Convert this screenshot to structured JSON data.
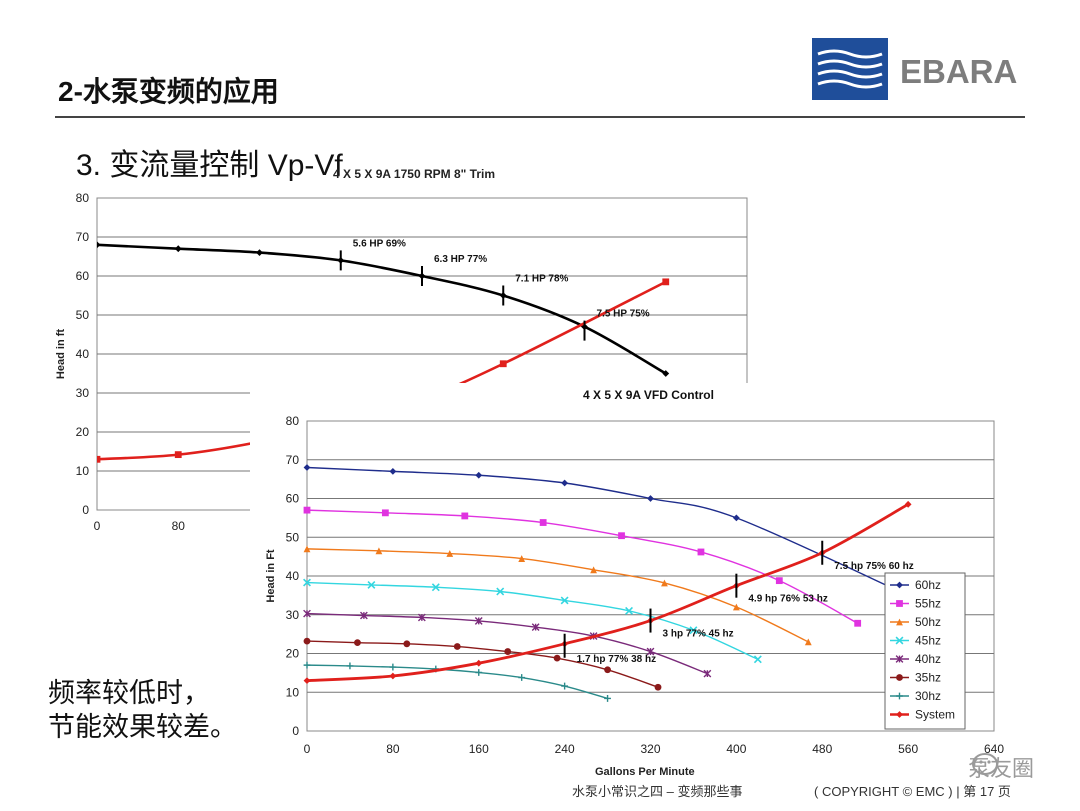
{
  "slide": {
    "title": "2-水泵变频的应用",
    "subtitle": "3.   变流量控制 Vp-Vf",
    "note_line1": "频率较低时，",
    "note_line2": "节能效果较差。",
    "footer_left": "水泵小常识之四 – 变频那些事",
    "footer_right": "( COPYRIGHT © EMC )  |  第 17 页",
    "logo_text": "EBARA",
    "watermark_text": "泵友圈",
    "colors": {
      "logo_blue": "#1f4e9a",
      "logo_gray": "#7d7d7d",
      "system": "#e0201c"
    }
  },
  "chart_data": [
    {
      "type": "line",
      "title": "4 X 5 X 9A  1750 RPM 8\" Trim",
      "ylabel": "Head in ft",
      "xlabel": "",
      "xlim": [
        0,
        640
      ],
      "ylim": [
        0,
        80
      ],
      "yticks": [
        "0",
        "10",
        "20",
        "30",
        "40",
        "50",
        "60",
        "70",
        "80"
      ],
      "xticks": [
        "0",
        "80"
      ],
      "grid": true,
      "series": [
        {
          "color": "#000000",
          "marker": "diamond",
          "x": [
            0,
            80,
            160,
            240,
            320,
            400,
            480,
            560
          ],
          "y": [
            68,
            67,
            66,
            64,
            60,
            55,
            47,
            35
          ]
        },
        {
          "color": "#e0201c",
          "marker": "square",
          "x": [
            0,
            80,
            160,
            240,
            320,
            400,
            560
          ],
          "y": [
            13,
            14.2,
            17.5,
            22.5,
            28.5,
            37.5,
            58.5
          ]
        }
      ],
      "annotations": [
        {
          "text": "5.6 HP  69%",
          "x": 240,
          "y": 64
        },
        {
          "text": "6.3 HP  77%",
          "x": 320,
          "y": 60
        },
        {
          "text": "7.1 HP  78%",
          "x": 400,
          "y": 55
        },
        {
          "text": "7.5 HP  75%",
          "x": 480,
          "y": 46
        }
      ]
    },
    {
      "type": "line",
      "title": "4 X 5 X 9A  VFD Control",
      "ylabel": "Head in Ft",
      "xlabel": "Gallons Per Minute",
      "xlim": [
        0,
        640
      ],
      "ylim": [
        0,
        80
      ],
      "xticks": [
        "0",
        "80",
        "160",
        "240",
        "320",
        "400",
        "480",
        "560",
        "640"
      ],
      "yticks": [
        "0",
        "10",
        "20",
        "30",
        "40",
        "50",
        "60",
        "70",
        "80"
      ],
      "grid": true,
      "legend": "right",
      "series": [
        {
          "name": "60hz",
          "color": "#1f2d8c",
          "marker": "diamond",
          "x": [
            0,
            80,
            160,
            240,
            320,
            400,
            560
          ],
          "y": [
            68,
            67,
            66,
            64,
            60,
            55,
            35
          ]
        },
        {
          "name": "55hz",
          "color": "#e033e0",
          "marker": "square",
          "x": [
            0,
            73,
            147,
            220,
            293,
            367,
            440,
            513
          ],
          "y": [
            57,
            56.3,
            55.5,
            53.8,
            50.4,
            46.2,
            38.8,
            27.8
          ]
        },
        {
          "name": "50hz",
          "color": "#f07a1c",
          "marker": "triangle",
          "x": [
            0,
            67,
            133,
            200,
            267,
            333,
            400,
            467
          ],
          "y": [
            47,
            46.5,
            45.8,
            44.5,
            41.6,
            38.2,
            32,
            23
          ]
        },
        {
          "name": "45hz",
          "color": "#33d6e0",
          "marker": "x",
          "x": [
            0,
            60,
            120,
            180,
            240,
            300,
            360,
            420
          ],
          "y": [
            38.3,
            37.7,
            37.1,
            36,
            33.7,
            31,
            26,
            18.5
          ]
        },
        {
          "name": "40hz",
          "color": "#7a2a7a",
          "marker": "star",
          "x": [
            0,
            53,
            107,
            160,
            213,
            267,
            320,
            373
          ],
          "y": [
            30.3,
            29.8,
            29.3,
            28.4,
            26.8,
            24.5,
            20.5,
            14.8
          ]
        },
        {
          "name": "35hz",
          "color": "#8b1a1a",
          "marker": "circle",
          "x": [
            0,
            47,
            93,
            140,
            187,
            233,
            280,
            327
          ],
          "y": [
            23.2,
            22.8,
            22.5,
            21.8,
            20.5,
            18.8,
            15.8,
            11.3
          ]
        },
        {
          "name": "30hz",
          "color": "#2a8a8a",
          "marker": "plus",
          "x": [
            0,
            40,
            80,
            120,
            160,
            200,
            240,
            280
          ],
          "y": [
            17,
            16.8,
            16.5,
            16,
            15.1,
            13.8,
            11.6,
            8.4
          ]
        },
        {
          "name": "System",
          "color": "#e0201c",
          "marker": "diamond",
          "x": [
            0,
            80,
            160,
            240,
            320,
            400,
            480,
            560
          ],
          "y": [
            13,
            14.2,
            17.5,
            22.5,
            28.5,
            37.5,
            46,
            58.5
          ]
        }
      ],
      "annotations": [
        {
          "text": "7.5 hp  75%  60 hz",
          "x": 480,
          "y": 46
        },
        {
          "text": "4.9 hp  76%  53 hz",
          "x": 400,
          "y": 37.5
        },
        {
          "text": "3 hp  77%  45 hz",
          "x": 320,
          "y": 28.5
        },
        {
          "text": "1.7 hp  77%  38 hz",
          "x": 240,
          "y": 22
        }
      ]
    }
  ]
}
